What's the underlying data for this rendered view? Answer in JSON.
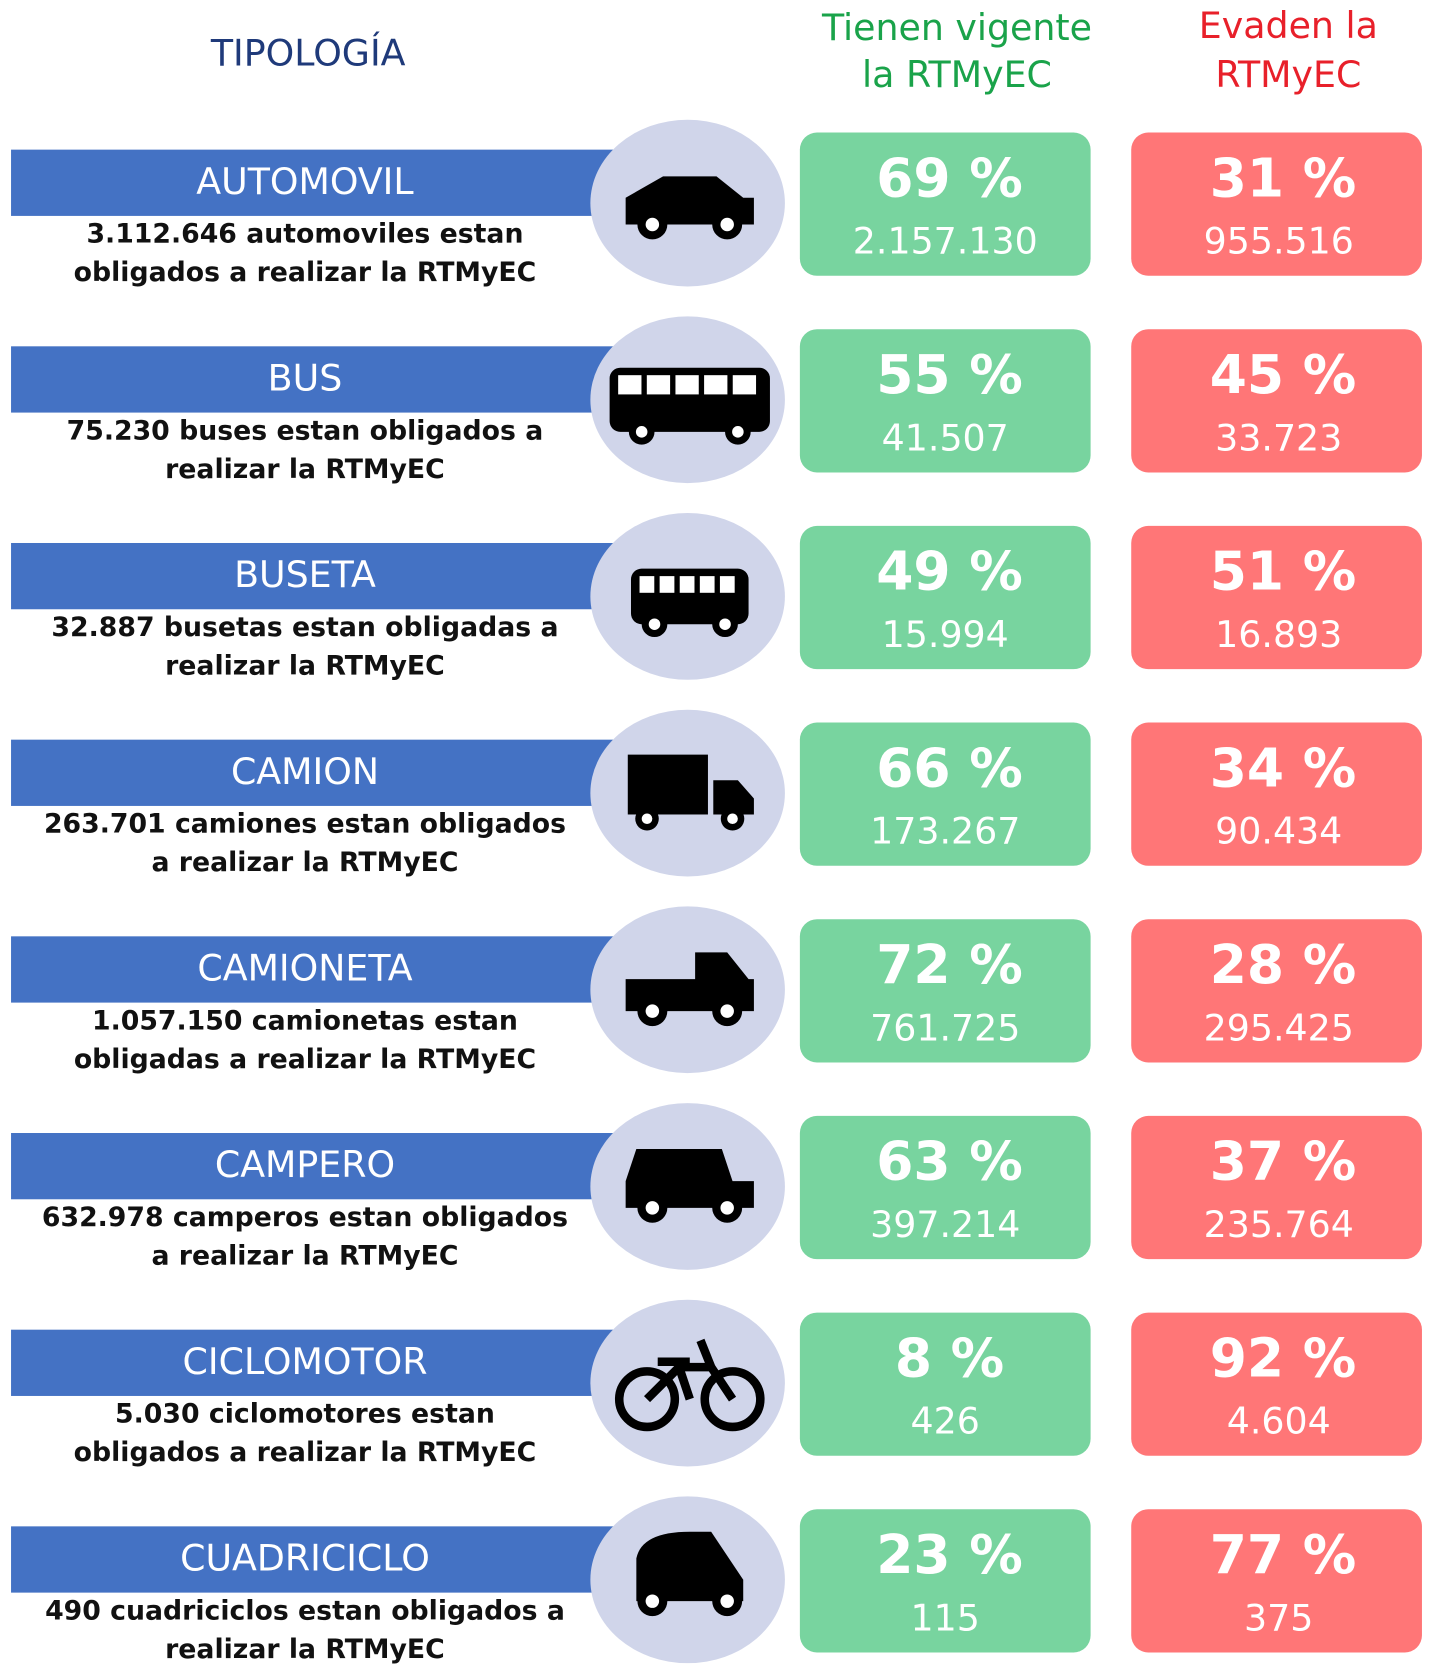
{
  "header": {
    "tipologia": "TIPOLOGÍA",
    "vigente": [
      "Tienen vigente",
      "la RTMyEC"
    ],
    "evaden": [
      "Evaden la",
      "RTMyEC"
    ]
  },
  "rows": [
    {
      "name": "AUTOMOVIL",
      "description": [
        "3.112.646 automoviles estan",
        "obligados a realizar la RTMyEC"
      ],
      "vigente_pct": "69 %",
      "vigente_count": "2.157.130",
      "evaden_pct": "31 %",
      "evaden_count": "955.516"
    },
    {
      "name": "BUS",
      "description": [
        "75.230 buses estan obligados a",
        "realizar la RTMyEC"
      ],
      "vigente_pct": "55 %",
      "vigente_count": "41.507",
      "evaden_pct": "45 %",
      "evaden_count": "33.723"
    },
    {
      "name": "BUSETA",
      "description": [
        "32.887 busetas estan obligadas a",
        "realizar la RTMyEC"
      ],
      "vigente_pct": "49 %",
      "vigente_count": "15.994",
      "evaden_pct": "51 %",
      "evaden_count": "16.893"
    },
    {
      "name": "CAMION",
      "description": [
        "263.701 camiones estan obligados",
        "a realizar la RTMyEC"
      ],
      "vigente_pct": "66 %",
      "vigente_count": "173.267",
      "evaden_pct": "34 %",
      "evaden_count": "90.434"
    },
    {
      "name": "CAMIONETA",
      "description": [
        "1.057.150 camionetas estan",
        "obligadas a realizar la RTMyEC"
      ],
      "vigente_pct": "72 %",
      "vigente_count": "761.725",
      "evaden_pct": "28 %",
      "evaden_count": "295.425"
    },
    {
      "name": "CAMPERO",
      "description": [
        "632.978 camperos estan obligados",
        "a realizar la RTMyEC"
      ],
      "vigente_pct": "63 %",
      "vigente_count": "397.214",
      "evaden_pct": "37 %",
      "evaden_count": "235.764"
    },
    {
      "name": "CICLOMOTOR",
      "description": [
        "5.030 ciclomotores estan",
        "obligados a realizar la RTMyEC"
      ],
      "vigente_pct": "8 %",
      "vigente_count": "426",
      "evaden_pct": "92 %",
      "evaden_count": "4.604"
    },
    {
      "name": "CUADRICICLO",
      "description": [
        "490 cuadriciclos estan obligados a",
        "realizar la RTMyEC"
      ],
      "vigente_pct": "23 %",
      "vigente_count": "115",
      "evaden_pct": "77 %",
      "evaden_count": "375"
    }
  ]
}
